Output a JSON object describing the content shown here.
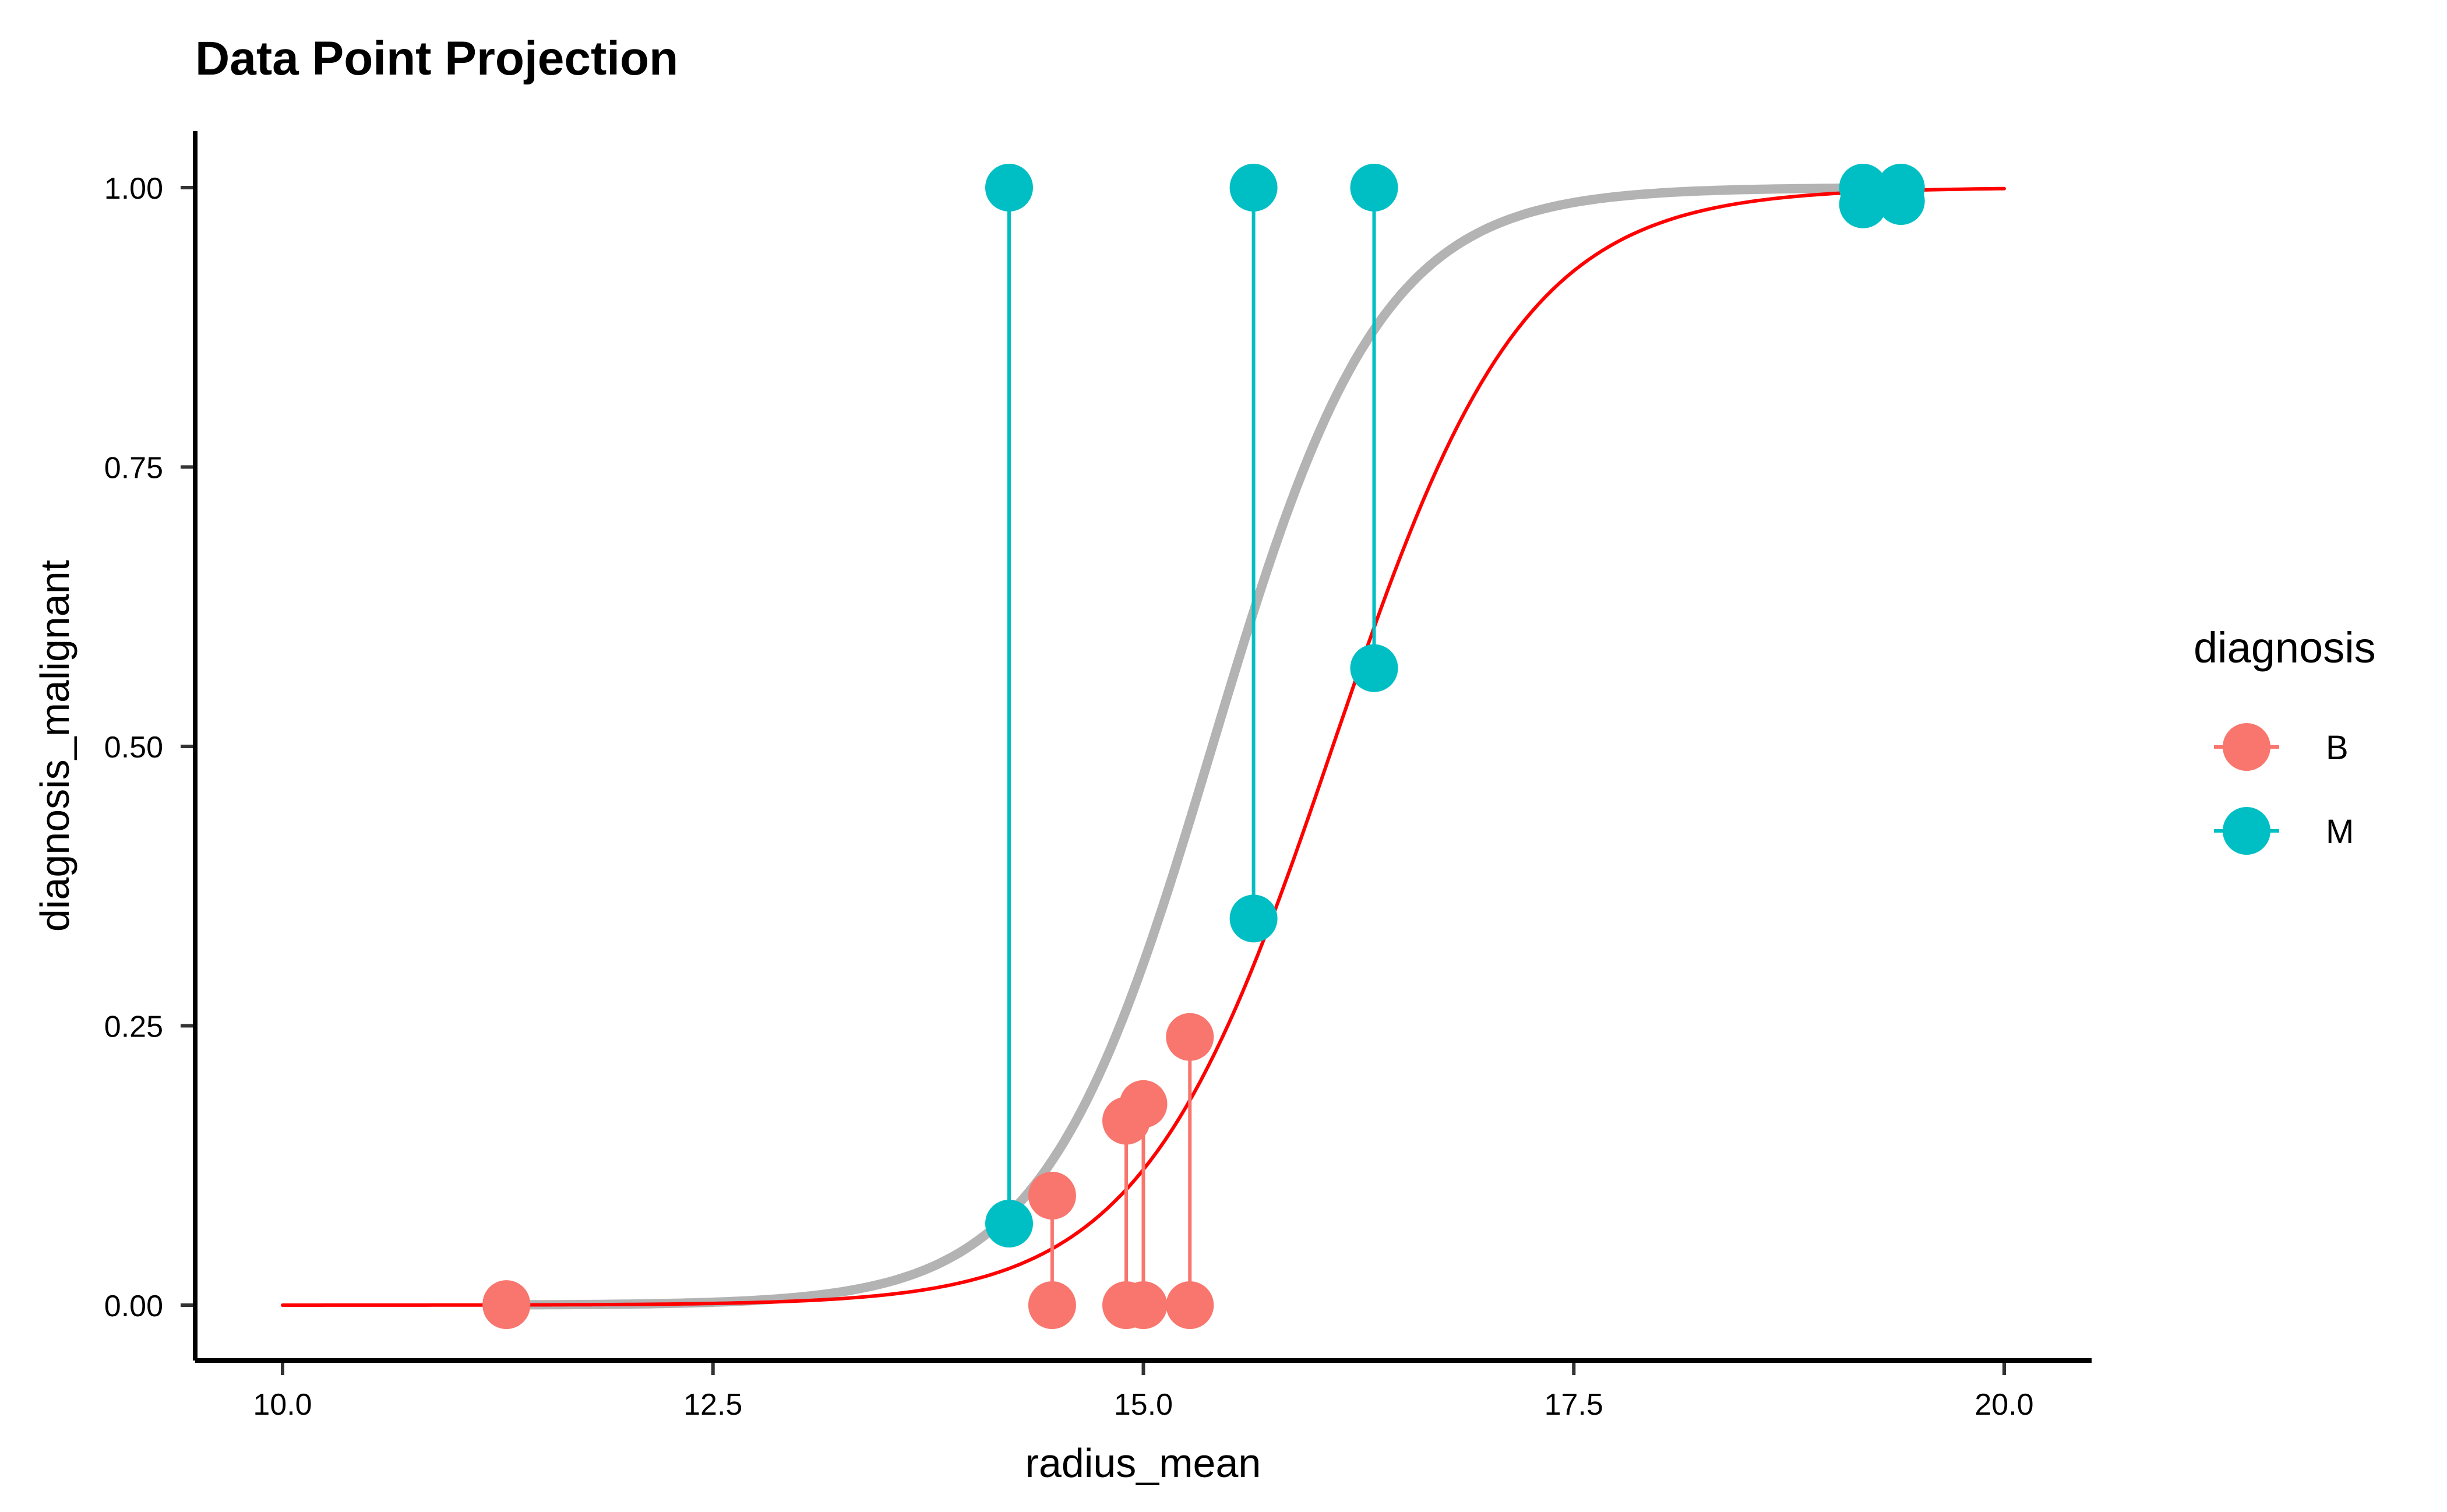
{
  "chart_data": {
    "type": "scatter",
    "title": "Data Point Projection",
    "xlabel": "radius_mean",
    "ylabel": "diagnosis_malignant",
    "xlim": [
      9.8,
      20.5
    ],
    "ylim": [
      -0.05,
      1.05
    ],
    "x_ticks": [
      10.0,
      12.5,
      15.0,
      17.5,
      20.0
    ],
    "x_tick_labels": [
      "10.0",
      "12.5",
      "15.0",
      "17.5",
      "20.0"
    ],
    "y_ticks": [
      0.0,
      0.25,
      0.5,
      0.75,
      1.0
    ],
    "y_tick_labels": [
      "0.00",
      "0.25",
      "0.50",
      "0.75",
      "1.00"
    ],
    "grid": false,
    "legend": {
      "title": "diagnosis",
      "position": "right",
      "entries": [
        {
          "label": "B",
          "color": "#F8766D"
        },
        {
          "label": "M",
          "color": "#00BFC4"
        }
      ]
    },
    "curves": [
      {
        "color": "#B3B3B3",
        "midpoint": 15.4,
        "slope": 2.05,
        "x_range": [
          11.3,
          19.4
        ]
      },
      {
        "color": "#FF0000",
        "midpoint": 16.1,
        "slope": 1.8,
        "x_range": [
          10.0,
          20.0
        ]
      }
    ],
    "points": [
      {
        "x": 11.3,
        "y_observed": 0,
        "y_projected": 0.001,
        "diagnosis": "B"
      },
      {
        "x": 14.47,
        "y_observed": 0,
        "y_projected": 0.098,
        "diagnosis": "B"
      },
      {
        "x": 14.9,
        "y_observed": 0,
        "y_projected": 0.165,
        "diagnosis": "B"
      },
      {
        "x": 15.0,
        "y_observed": 0,
        "y_projected": 0.18,
        "diagnosis": "B"
      },
      {
        "x": 15.27,
        "y_observed": 0,
        "y_projected": 0.24,
        "diagnosis": "B"
      },
      {
        "x": 14.22,
        "y_observed": 1,
        "y_projected": 0.073,
        "diagnosis": "M"
      },
      {
        "x": 15.64,
        "y_observed": 1,
        "y_projected": 0.346,
        "diagnosis": "M"
      },
      {
        "x": 16.34,
        "y_observed": 1,
        "y_projected": 0.57,
        "diagnosis": "M"
      },
      {
        "x": 19.18,
        "y_observed": 1,
        "y_projected": 0.985,
        "diagnosis": "M"
      },
      {
        "x": 19.4,
        "y_observed": 1,
        "y_projected": 0.988,
        "diagnosis": "M"
      }
    ]
  }
}
